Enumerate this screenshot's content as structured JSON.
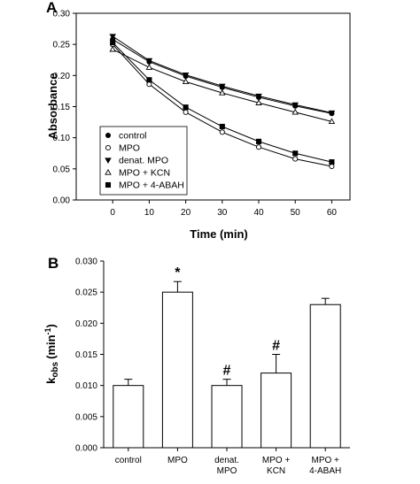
{
  "chart_data": [
    {
      "panel_label": "A",
      "type": "line",
      "xlabel": "Time (min)",
      "ylabel": "Absorbance",
      "xlim": [
        -10,
        65
      ],
      "ylim": [
        0.0,
        0.3
      ],
      "x_ticks": [
        0,
        10,
        20,
        30,
        40,
        50,
        60
      ],
      "y_ticks": [
        "0.00",
        "0.05",
        "0.10",
        "0.15",
        "0.20",
        "0.25",
        "0.30"
      ],
      "legend_position": "bottom-left",
      "grid": false,
      "x": [
        0,
        10,
        20,
        30,
        40,
        50,
        60
      ],
      "series": [
        {
          "name": "control",
          "marker": "circle-filled",
          "values": [
            0.258,
            0.222,
            0.199,
            0.181,
            0.165,
            0.151,
            0.139
          ]
        },
        {
          "name": "MPO",
          "marker": "circle-open",
          "values": [
            0.25,
            0.186,
            0.141,
            0.109,
            0.085,
            0.066,
            0.054
          ]
        },
        {
          "name": "denat. MPO",
          "marker": "triangle-down-filled",
          "values": [
            0.263,
            0.224,
            0.201,
            0.183,
            0.167,
            0.153,
            0.14
          ]
        },
        {
          "name": "MPO + KCN",
          "marker": "triangle-up-open",
          "values": [
            0.242,
            0.213,
            0.19,
            0.172,
            0.156,
            0.141,
            0.126
          ]
        },
        {
          "name": "MPO + 4-ABAH",
          "marker": "square-filled",
          "values": [
            0.253,
            0.193,
            0.149,
            0.118,
            0.094,
            0.075,
            0.061
          ]
        }
      ]
    },
    {
      "panel_label": "B",
      "type": "bar",
      "ylabel_main": "k",
      "ylabel_sub": "obs",
      "ylabel_unit": "(min",
      "ylabel_sup": "-1",
      "ylabel_close": ")",
      "ylim": [
        0.0,
        0.03
      ],
      "y_ticks": [
        "0.000",
        "0.005",
        "0.010",
        "0.015",
        "0.020",
        "0.025",
        "0.030"
      ],
      "grid": false,
      "categories": [
        {
          "lines": [
            "control"
          ]
        },
        {
          "lines": [
            "MPO"
          ]
        },
        {
          "lines": [
            "denat.",
            "MPO"
          ]
        },
        {
          "lines": [
            "MPO +",
            "KCN"
          ]
        },
        {
          "lines": [
            "MPO +",
            "4-ABAH"
          ]
        }
      ],
      "values": [
        0.01,
        0.025,
        0.01,
        0.012,
        0.023
      ],
      "errors": [
        0.001,
        0.0017,
        0.001,
        0.003,
        0.001
      ],
      "annotations": [
        "",
        "*",
        "#",
        "#",
        ""
      ]
    }
  ]
}
